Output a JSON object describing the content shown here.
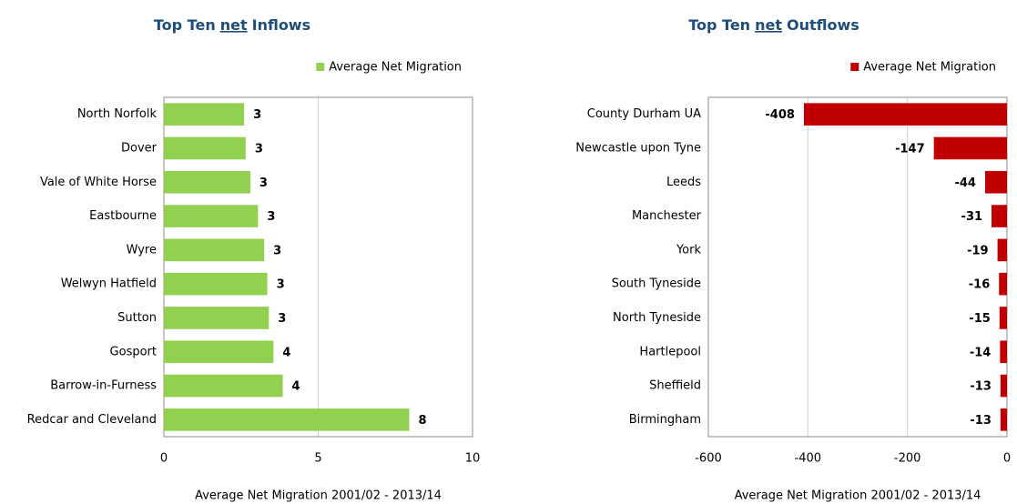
{
  "chart_data": [
    {
      "type": "bar",
      "orientation": "horizontal",
      "title": [
        "Top Ten",
        "net",
        "Inflows"
      ],
      "categories": [
        "North Norfolk",
        "Dover",
        "Vale of White Horse",
        "Eastbourne",
        "Wyre",
        "Welwyn Hatfield",
        "Sutton",
        "Gosport",
        "Barrow-in-Furness",
        "Redcar and Cleveland"
      ],
      "series": [
        {
          "name": "Average Net Migration",
          "color": "#92d050",
          "values": [
            2.6,
            2.65,
            2.8,
            3.05,
            3.25,
            3.35,
            3.4,
            3.55,
            3.85,
            7.95
          ],
          "value_labels": [
            "3",
            "3",
            "3",
            "3",
            "3",
            "3",
            "3",
            "4",
            "4",
            "8"
          ]
        }
      ],
      "xlim": [
        0,
        10
      ],
      "xticks": [
        0,
        5,
        10
      ],
      "grid": true,
      "legend": "upper right",
      "xlabel": "Average Net Migration 2001/02 - 2013/14"
    },
    {
      "type": "bar",
      "orientation": "horizontal",
      "title": [
        "Top Ten",
        "net",
        "Outflows"
      ],
      "categories": [
        "County Durham UA",
        "Newcastle upon Tyne",
        "Leeds",
        "Manchester",
        "York",
        "South Tyneside",
        "North Tyneside",
        "Hartlepool",
        "Sheffield",
        "Birmingham"
      ],
      "series": [
        {
          "name": "Average Net Migration",
          "color": "#c00000",
          "values": [
            -408,
            -147,
            -44,
            -31,
            -19,
            -16,
            -15,
            -14,
            -13,
            -13
          ]
        }
      ],
      "xlim": [
        -600,
        0
      ],
      "xticks": [
        -600,
        -400,
        -200,
        0
      ],
      "grid": true,
      "legend": "upper right",
      "xlabel": "Average Net Migration 2001/02 - 2013/14"
    }
  ]
}
